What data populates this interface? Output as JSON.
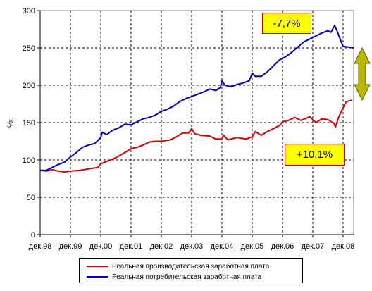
{
  "chart_data": {
    "type": "line",
    "title": "",
    "xlabel": "",
    "ylabel": "%",
    "ylim": [
      0,
      300
    ],
    "yticks": [
      0,
      50,
      100,
      150,
      200,
      250,
      300
    ],
    "xlim": [
      0,
      10.35
    ],
    "xticks": [
      {
        "x": 0,
        "label": "дек.98"
      },
      {
        "x": 1,
        "label": "дек.99"
      },
      {
        "x": 2,
        "label": "дек.00"
      },
      {
        "x": 3,
        "label": "дек.01"
      },
      {
        "x": 4,
        "label": "дек.02"
      },
      {
        "x": 5,
        "label": "дек.03"
      },
      {
        "x": 6,
        "label": "дек.04"
      },
      {
        "x": 7,
        "label": "дек.05"
      },
      {
        "x": 8,
        "label": "дек.06"
      },
      {
        "x": 9,
        "label": "дек.07"
      },
      {
        "x": 10,
        "label": "дек.08"
      }
    ],
    "grid": true,
    "legend_position": "bottom",
    "series": [
      {
        "name": "Реальная производительская заработная плата",
        "color": "#dd0000",
        "points": [
          [
            0,
            86
          ],
          [
            0.2,
            85
          ],
          [
            0.4,
            87
          ],
          [
            0.6,
            85
          ],
          [
            0.8,
            84
          ],
          [
            1.0,
            85
          ],
          [
            1.3,
            86
          ],
          [
            1.6,
            88
          ],
          [
            1.9,
            90
          ],
          [
            2.0,
            95
          ],
          [
            2.2,
            98
          ],
          [
            2.5,
            103
          ],
          [
            2.8,
            110
          ],
          [
            3.0,
            115
          ],
          [
            3.2,
            117
          ],
          [
            3.4,
            120
          ],
          [
            3.6,
            124
          ],
          [
            3.8,
            125
          ],
          [
            4.0,
            125
          ],
          [
            4.3,
            127
          ],
          [
            4.5,
            131
          ],
          [
            4.7,
            136
          ],
          [
            4.9,
            136
          ],
          [
            5.0,
            142
          ],
          [
            5.1,
            135
          ],
          [
            5.3,
            133
          ],
          [
            5.6,
            132
          ],
          [
            5.8,
            128
          ],
          [
            6.0,
            128
          ],
          [
            6.05,
            133
          ],
          [
            6.2,
            127
          ],
          [
            6.5,
            130
          ],
          [
            6.8,
            128
          ],
          [
            7.0,
            131
          ],
          [
            7.1,
            138
          ],
          [
            7.3,
            133
          ],
          [
            7.5,
            138
          ],
          [
            7.7,
            142
          ],
          [
            7.9,
            146
          ],
          [
            8.0,
            151
          ],
          [
            8.2,
            153
          ],
          [
            8.4,
            157
          ],
          [
            8.6,
            153
          ],
          [
            8.8,
            156
          ],
          [
            8.9,
            158
          ],
          [
            9.1,
            150
          ],
          [
            9.3,
            155
          ],
          [
            9.5,
            154
          ],
          [
            9.7,
            149
          ],
          [
            9.75,
            144
          ],
          [
            9.85,
            157
          ],
          [
            10.0,
            170
          ],
          [
            10.1,
            178
          ],
          [
            10.3,
            180
          ]
        ]
      },
      {
        "name": "Реальная потребительская заработная плата",
        "color": "#0000cc",
        "points": [
          [
            0,
            86
          ],
          [
            0.2,
            86
          ],
          [
            0.4,
            90
          ],
          [
            0.6,
            94
          ],
          [
            0.8,
            97
          ],
          [
            1.0,
            104
          ],
          [
            1.2,
            110
          ],
          [
            1.4,
            117
          ],
          [
            1.6,
            120
          ],
          [
            1.8,
            122
          ],
          [
            2.0,
            130
          ],
          [
            2.05,
            137
          ],
          [
            2.2,
            134
          ],
          [
            2.4,
            140
          ],
          [
            2.6,
            143
          ],
          [
            2.8,
            148
          ],
          [
            3.0,
            147
          ],
          [
            3.2,
            151
          ],
          [
            3.4,
            155
          ],
          [
            3.6,
            157
          ],
          [
            3.8,
            160
          ],
          [
            4.0,
            165
          ],
          [
            4.2,
            168
          ],
          [
            4.4,
            172
          ],
          [
            4.6,
            178
          ],
          [
            4.8,
            182
          ],
          [
            5.0,
            185
          ],
          [
            5.2,
            188
          ],
          [
            5.4,
            191
          ],
          [
            5.6,
            195
          ],
          [
            5.8,
            193
          ],
          [
            5.95,
            197
          ],
          [
            6.0,
            206
          ],
          [
            6.1,
            200
          ],
          [
            6.3,
            198
          ],
          [
            6.5,
            201
          ],
          [
            6.7,
            203
          ],
          [
            6.9,
            206
          ],
          [
            7.0,
            216
          ],
          [
            7.1,
            212
          ],
          [
            7.3,
            212
          ],
          [
            7.5,
            218
          ],
          [
            7.7,
            226
          ],
          [
            7.9,
            234
          ],
          [
            8.1,
            238
          ],
          [
            8.3,
            244
          ],
          [
            8.5,
            251
          ],
          [
            8.7,
            258
          ],
          [
            8.9,
            262
          ],
          [
            9.1,
            266
          ],
          [
            9.3,
            270
          ],
          [
            9.5,
            273
          ],
          [
            9.6,
            271
          ],
          [
            9.72,
            280
          ],
          [
            9.8,
            273
          ],
          [
            9.9,
            262
          ],
          [
            10.0,
            252
          ],
          [
            10.2,
            251
          ],
          [
            10.35,
            250
          ]
        ]
      }
    ],
    "annotations": [
      {
        "label": "-7,7%",
        "near_series": "blue",
        "position": "top-right"
      },
      {
        "label": "+10,1%",
        "near_series": "red",
        "position": "right-middle"
      }
    ]
  }
}
